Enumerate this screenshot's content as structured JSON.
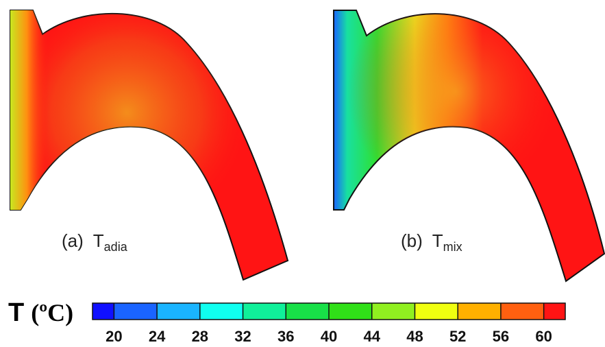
{
  "panels": [
    {
      "label": "(a)",
      "symbol": "T",
      "subscript": "adia"
    },
    {
      "label": "(b)",
      "symbol": "T",
      "subscript": "mix"
    }
  ],
  "colorbar": {
    "symbol": "T",
    "unit": "(ºC)",
    "ticks": [
      20,
      24,
      28,
      32,
      36,
      40,
      44,
      48,
      52,
      56,
      60
    ],
    "colors": [
      "#1010ff",
      "#1a64ff",
      "#1ab4ff",
      "#10fff0",
      "#10f09a",
      "#18e048",
      "#30e018",
      "#90f020",
      "#f0ff10",
      "#ffb000",
      "#ff6010",
      "#ff1414"
    ]
  }
}
